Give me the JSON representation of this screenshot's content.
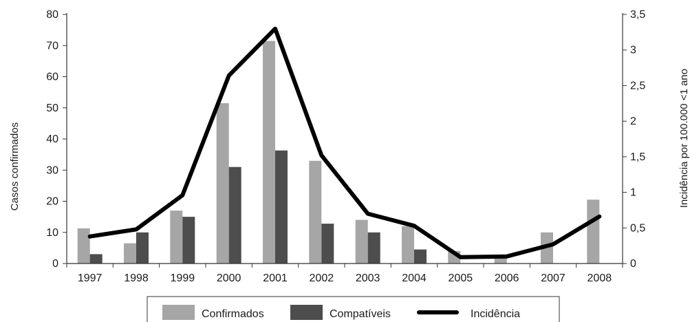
{
  "chart_data": {
    "type": "bar",
    "categories": [
      "1997",
      "1998",
      "1999",
      "2000",
      "2001",
      "2002",
      "2003",
      "2004",
      "2005",
      "2006",
      "2007",
      "2008"
    ],
    "series": [
      {
        "name": "Confirmados",
        "type": "bar",
        "axis": "left",
        "color": "#a6a6a6",
        "values": [
          11.3,
          6.5,
          17,
          51.5,
          71.5,
          33,
          14,
          12,
          4,
          2.5,
          10,
          20.5
        ]
      },
      {
        "name": "Compatíveis",
        "type": "bar",
        "axis": "left",
        "color": "#4d4d4d",
        "values": [
          3,
          10,
          15,
          31,
          36.3,
          12.8,
          10,
          4.5,
          0,
          0,
          0,
          0
        ]
      },
      {
        "name": "Incidência",
        "type": "line",
        "axis": "right",
        "color": "#000000",
        "values": [
          0.38,
          0.48,
          0.96,
          2.64,
          3.3,
          1.52,
          0.7,
          0.53,
          0.09,
          0.1,
          0.27,
          0.66
        ]
      }
    ],
    "ylabel": "Casos confirmados",
    "y2label": "Incidência por 100.000 <1 ano",
    "ylim": [
      0,
      80
    ],
    "y2lim": [
      0,
      3.5
    ],
    "yticks": [
      "0",
      "10",
      "20",
      "30",
      "40",
      "50",
      "60",
      "70",
      "80"
    ],
    "y2ticks": [
      "0",
      "0,5",
      "1",
      "1,5",
      "2",
      "2,5",
      "3",
      "3,5"
    ],
    "legend_position": "bottom",
    "grid": false
  }
}
